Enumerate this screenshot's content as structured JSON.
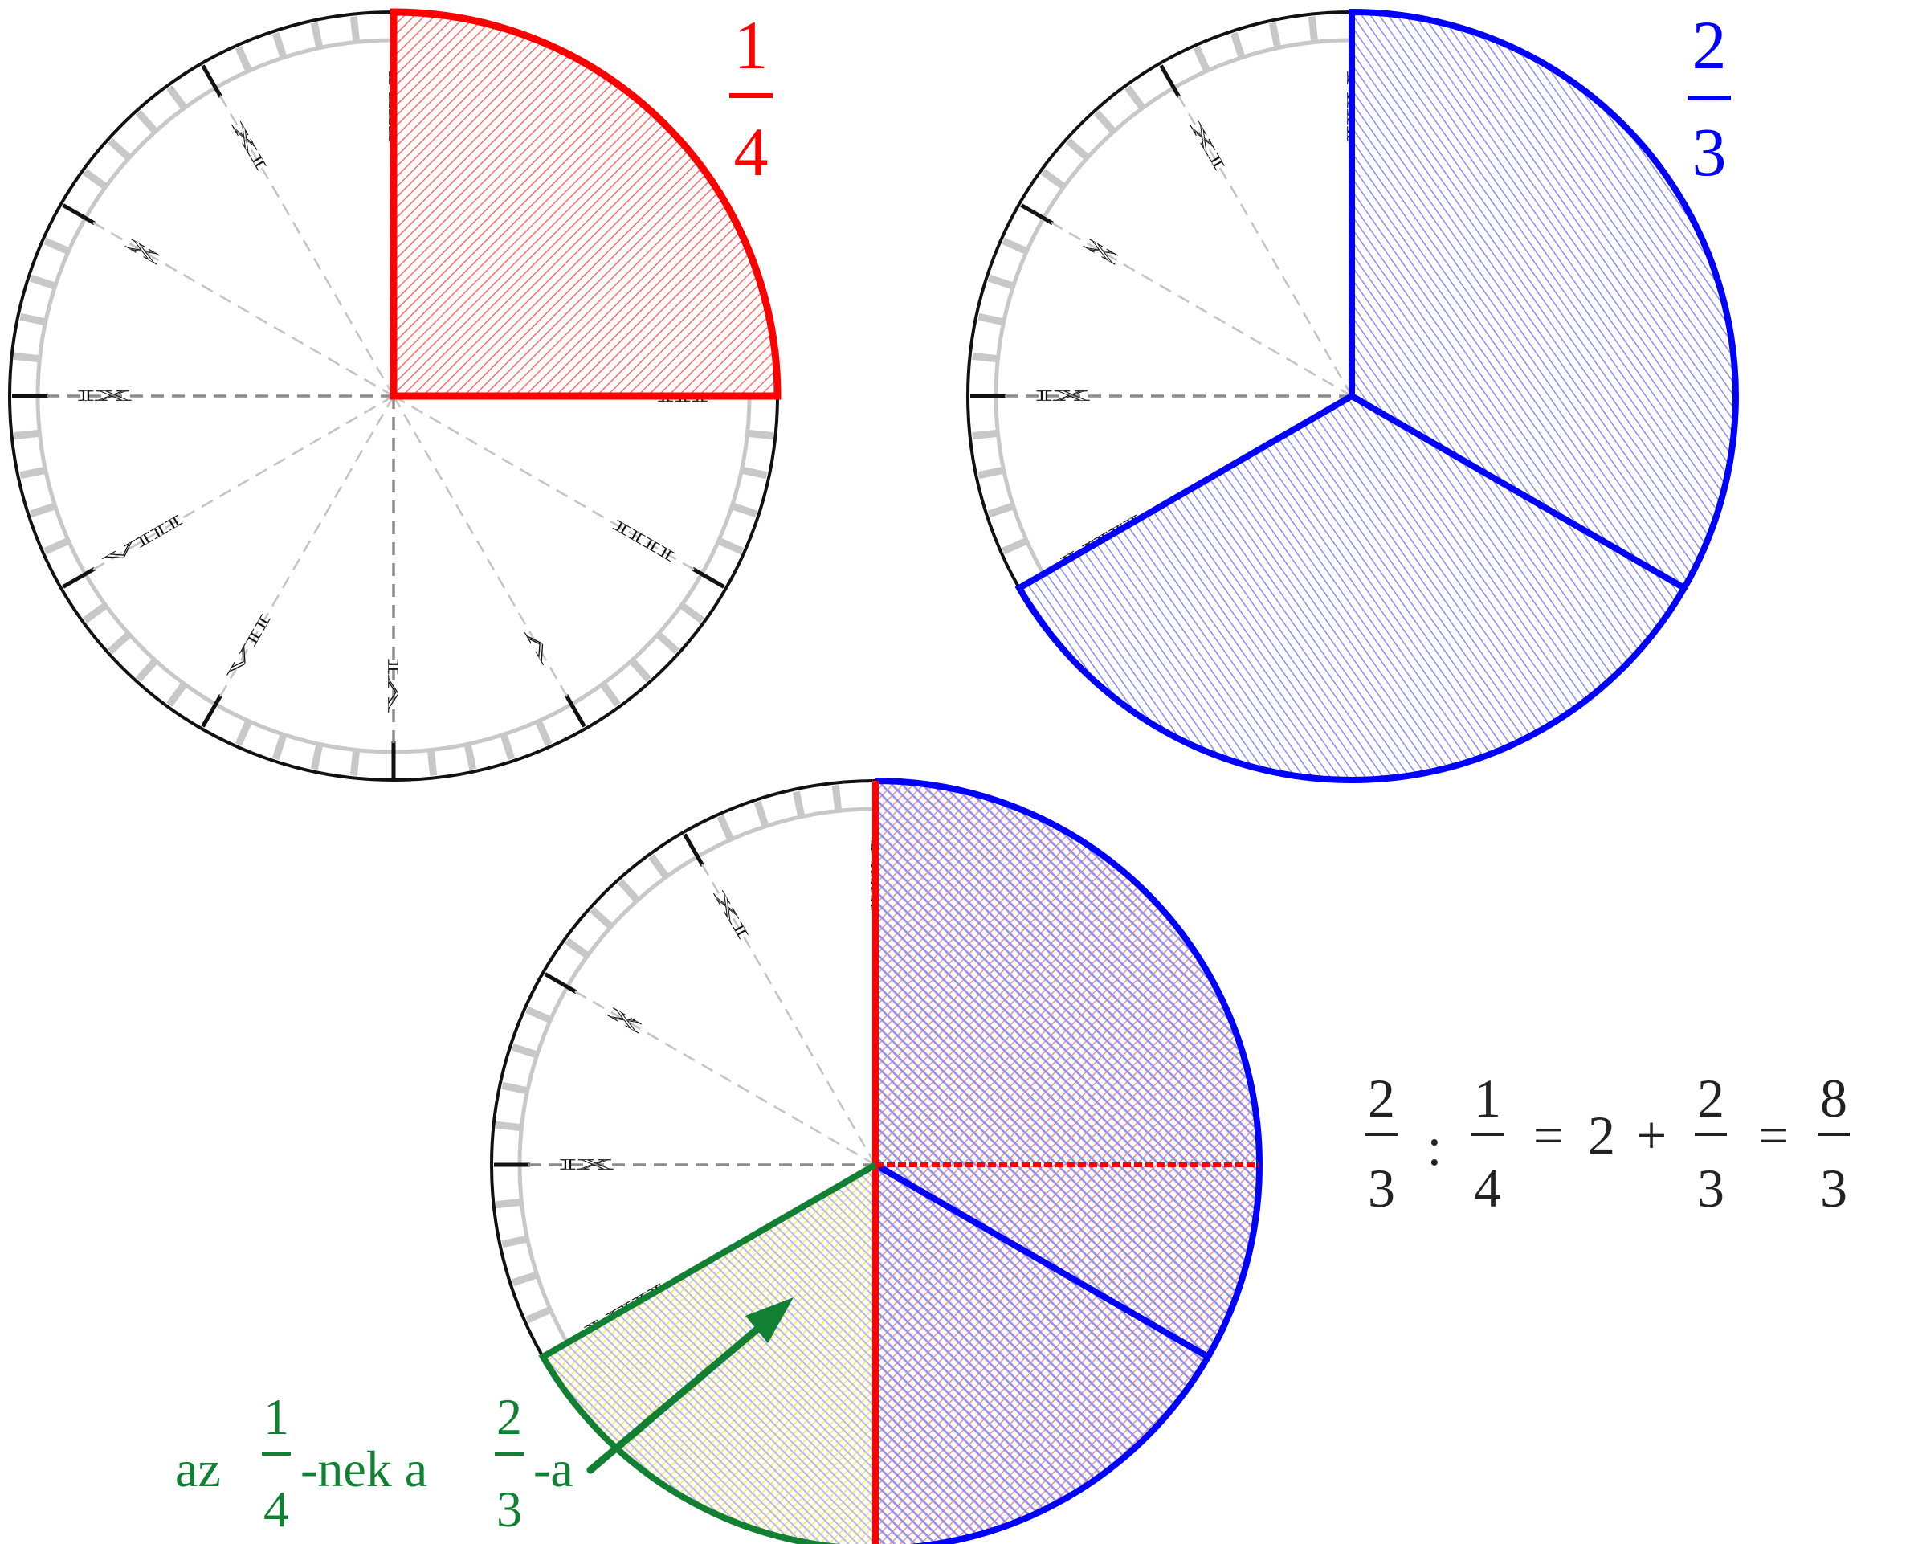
{
  "fractions": {
    "quarter": {
      "numerator": "1",
      "denominator": "4",
      "color": "#ff0000"
    },
    "two_thirds": {
      "numerator": "2",
      "denominator": "3",
      "color": "#0000ff"
    }
  },
  "clock_numerals": [
    "XII",
    "I",
    "II",
    "III",
    "IIII",
    "V",
    "VI",
    "VII",
    "VIII",
    "IX",
    "X",
    "XI"
  ],
  "equation": {
    "a_num": "2",
    "a_den": "3",
    "op1": ":",
    "b_num": "1",
    "b_den": "4",
    "eq1": "=",
    "whole": "2",
    "plus": "+",
    "c_num": "2",
    "c_den": "3",
    "eq2": "=",
    "d_num": "8",
    "d_den": "3",
    "color": "#222222"
  },
  "annotation": {
    "prefix": "az",
    "f1_num": "1",
    "f1_den": "4",
    "middle": "-nek a",
    "f2_num": "2",
    "f2_den": "3",
    "suffix": "-a",
    "color": "#118033"
  },
  "colors": {
    "red": "#ff0000",
    "blue": "#0000ff",
    "green": "#118033",
    "yellow_fill": "#ffee55",
    "tick_gray": "#c8c8c8",
    "dash_gray": "#8c8c8c"
  }
}
